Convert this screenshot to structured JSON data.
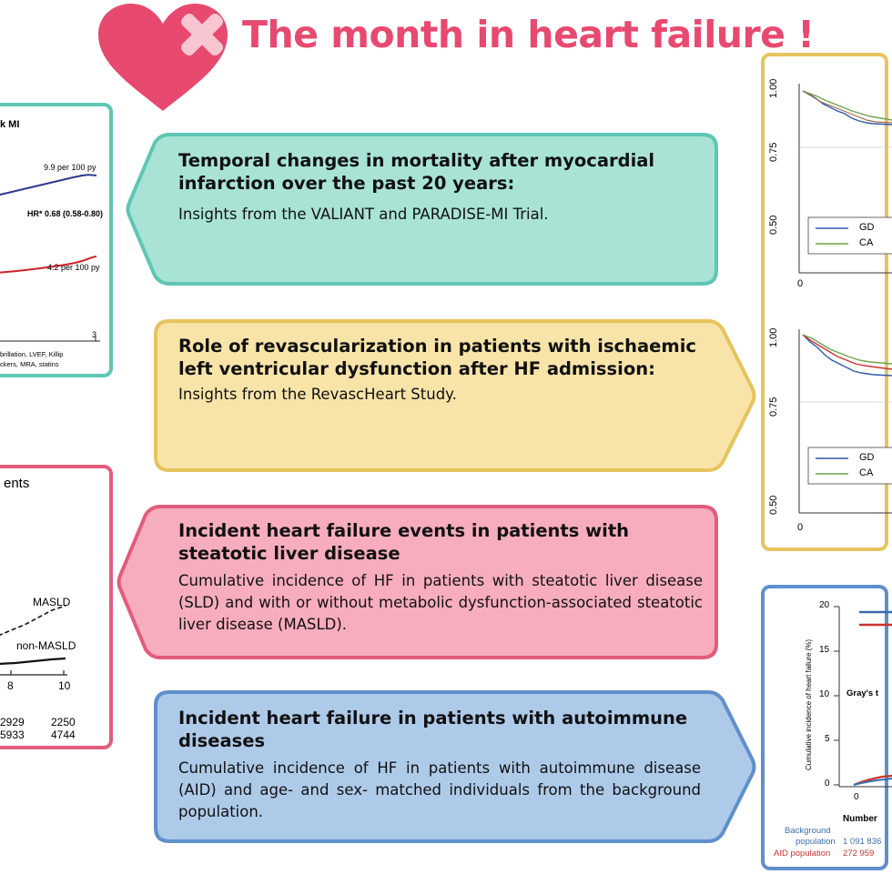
{
  "header": {
    "title": "The month in heart failure !"
  },
  "colors": {
    "accent": "#e8496f",
    "teal_border": "#5ec6b3",
    "teal_fill": "#a8e3d6",
    "yellow_border": "#e6c45d",
    "yellow_fill": "#f8e4a8",
    "pink_border": "#e35c7c",
    "pink_fill": "#f7adbd",
    "blue_border": "#5f8fcd",
    "blue_fill": "#aecae9"
  },
  "items": [
    {
      "title": "Temporal changes in mortality after myocardial infarction over the past 20 years:",
      "subtitle": "Insights from the VALIANT and PARADISE-MI Trial."
    },
    {
      "title": "Role of revascularization in patients with ischaemic left ventricular dysfunction after HF admission:",
      "subtitle": "Insights from the RevascHeart Study."
    },
    {
      "title": "Incident heart failure events in patients with steatotic liver disease",
      "subtitle": "Cumulative incidence of HF in patients with steatotic liver disease (SLD) and with or without metabolic dysfunction-associated steatotic liver disease (MASLD)."
    },
    {
      "title": "Incident heart failure in patients with autoimmune diseases",
      "subtitle": "Cumulative incidence of HF in patients with autoimmune disease (AID) and age- and sex- matched individuals from the background population."
    }
  ],
  "thumb_mi": {
    "title_fragment": "k MI",
    "upper_rate": "9.9 per 100 py",
    "hr": "HR* 0.68 (0.58-0.80)",
    "lower_rate": "4.2 per 100 py",
    "x_tick": "3",
    "footnote_1": "brillation, LVEF, Killip",
    "footnote_2": "ckers, MRA, statins"
  },
  "thumb_km": {
    "y_ticks": [
      "1.00",
      "0.75",
      "0.50"
    ],
    "x_tick": "0",
    "legend_1": "GD",
    "legend_2": "CA"
  },
  "thumb_masld": {
    "title_fragment": "ents",
    "label_masld": "MASLD",
    "label_non": "non-MASLD",
    "x_ticks": [
      "8",
      "10"
    ],
    "row1": [
      "2929",
      "2250"
    ],
    "row2": [
      "5933",
      "4744"
    ]
  },
  "thumb_aid": {
    "y_ticks": [
      "20",
      "15",
      "10",
      "5",
      "0"
    ],
    "y_label": "Cumulative incidence of heart failure (%)",
    "gray_label": "Gray's t",
    "x_tick": "0",
    "number_label": "Number",
    "bg_label_1": "Background",
    "bg_label_2": "population",
    "bg_value": "1 091 836",
    "aid_label": "AID population",
    "aid_value": "272 959"
  }
}
